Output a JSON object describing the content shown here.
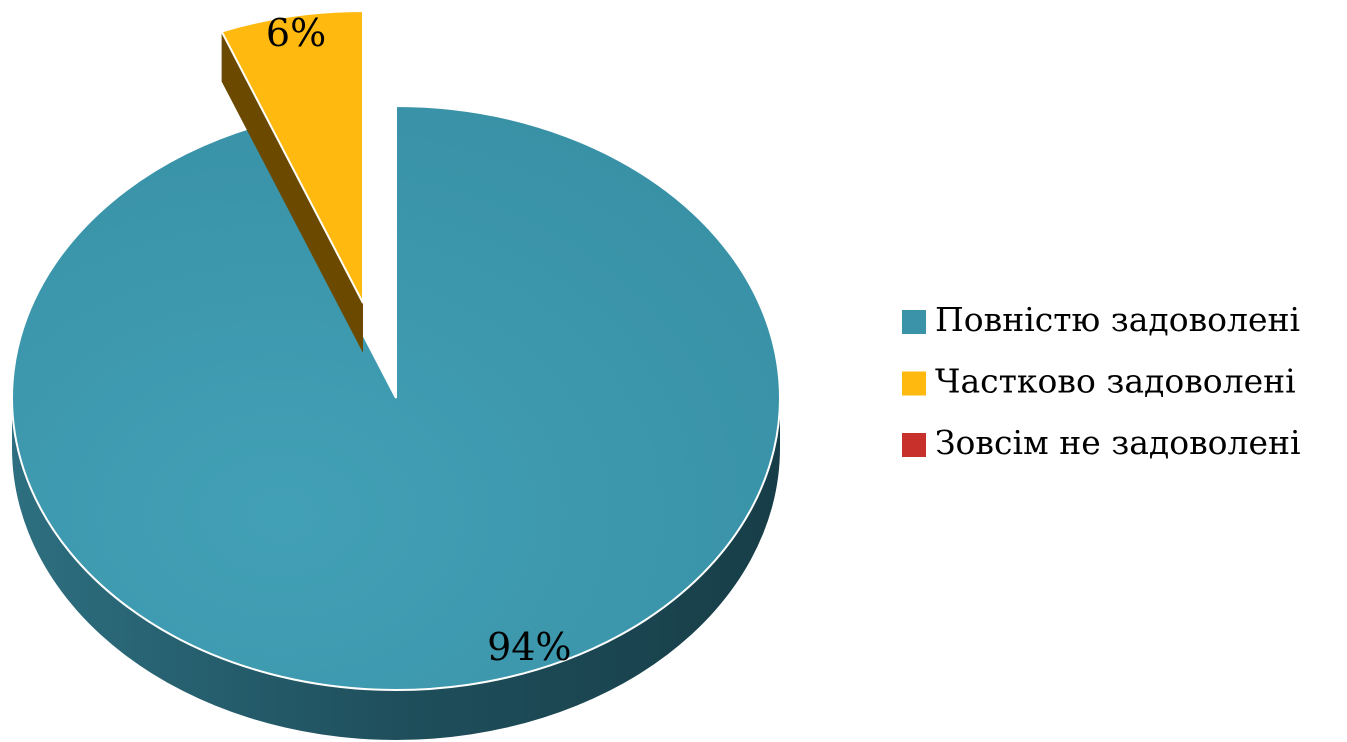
{
  "chart_data": {
    "type": "pie",
    "categories": [
      "Повністю задоволені",
      "Частково задоволені",
      "Зовсім не задоволені"
    ],
    "values": [
      94,
      6,
      0
    ],
    "value_labels": [
      "94%",
      "6%",
      null
    ],
    "colors": [
      "#3a93a8",
      "#ffb90f",
      "#c8302c"
    ]
  }
}
